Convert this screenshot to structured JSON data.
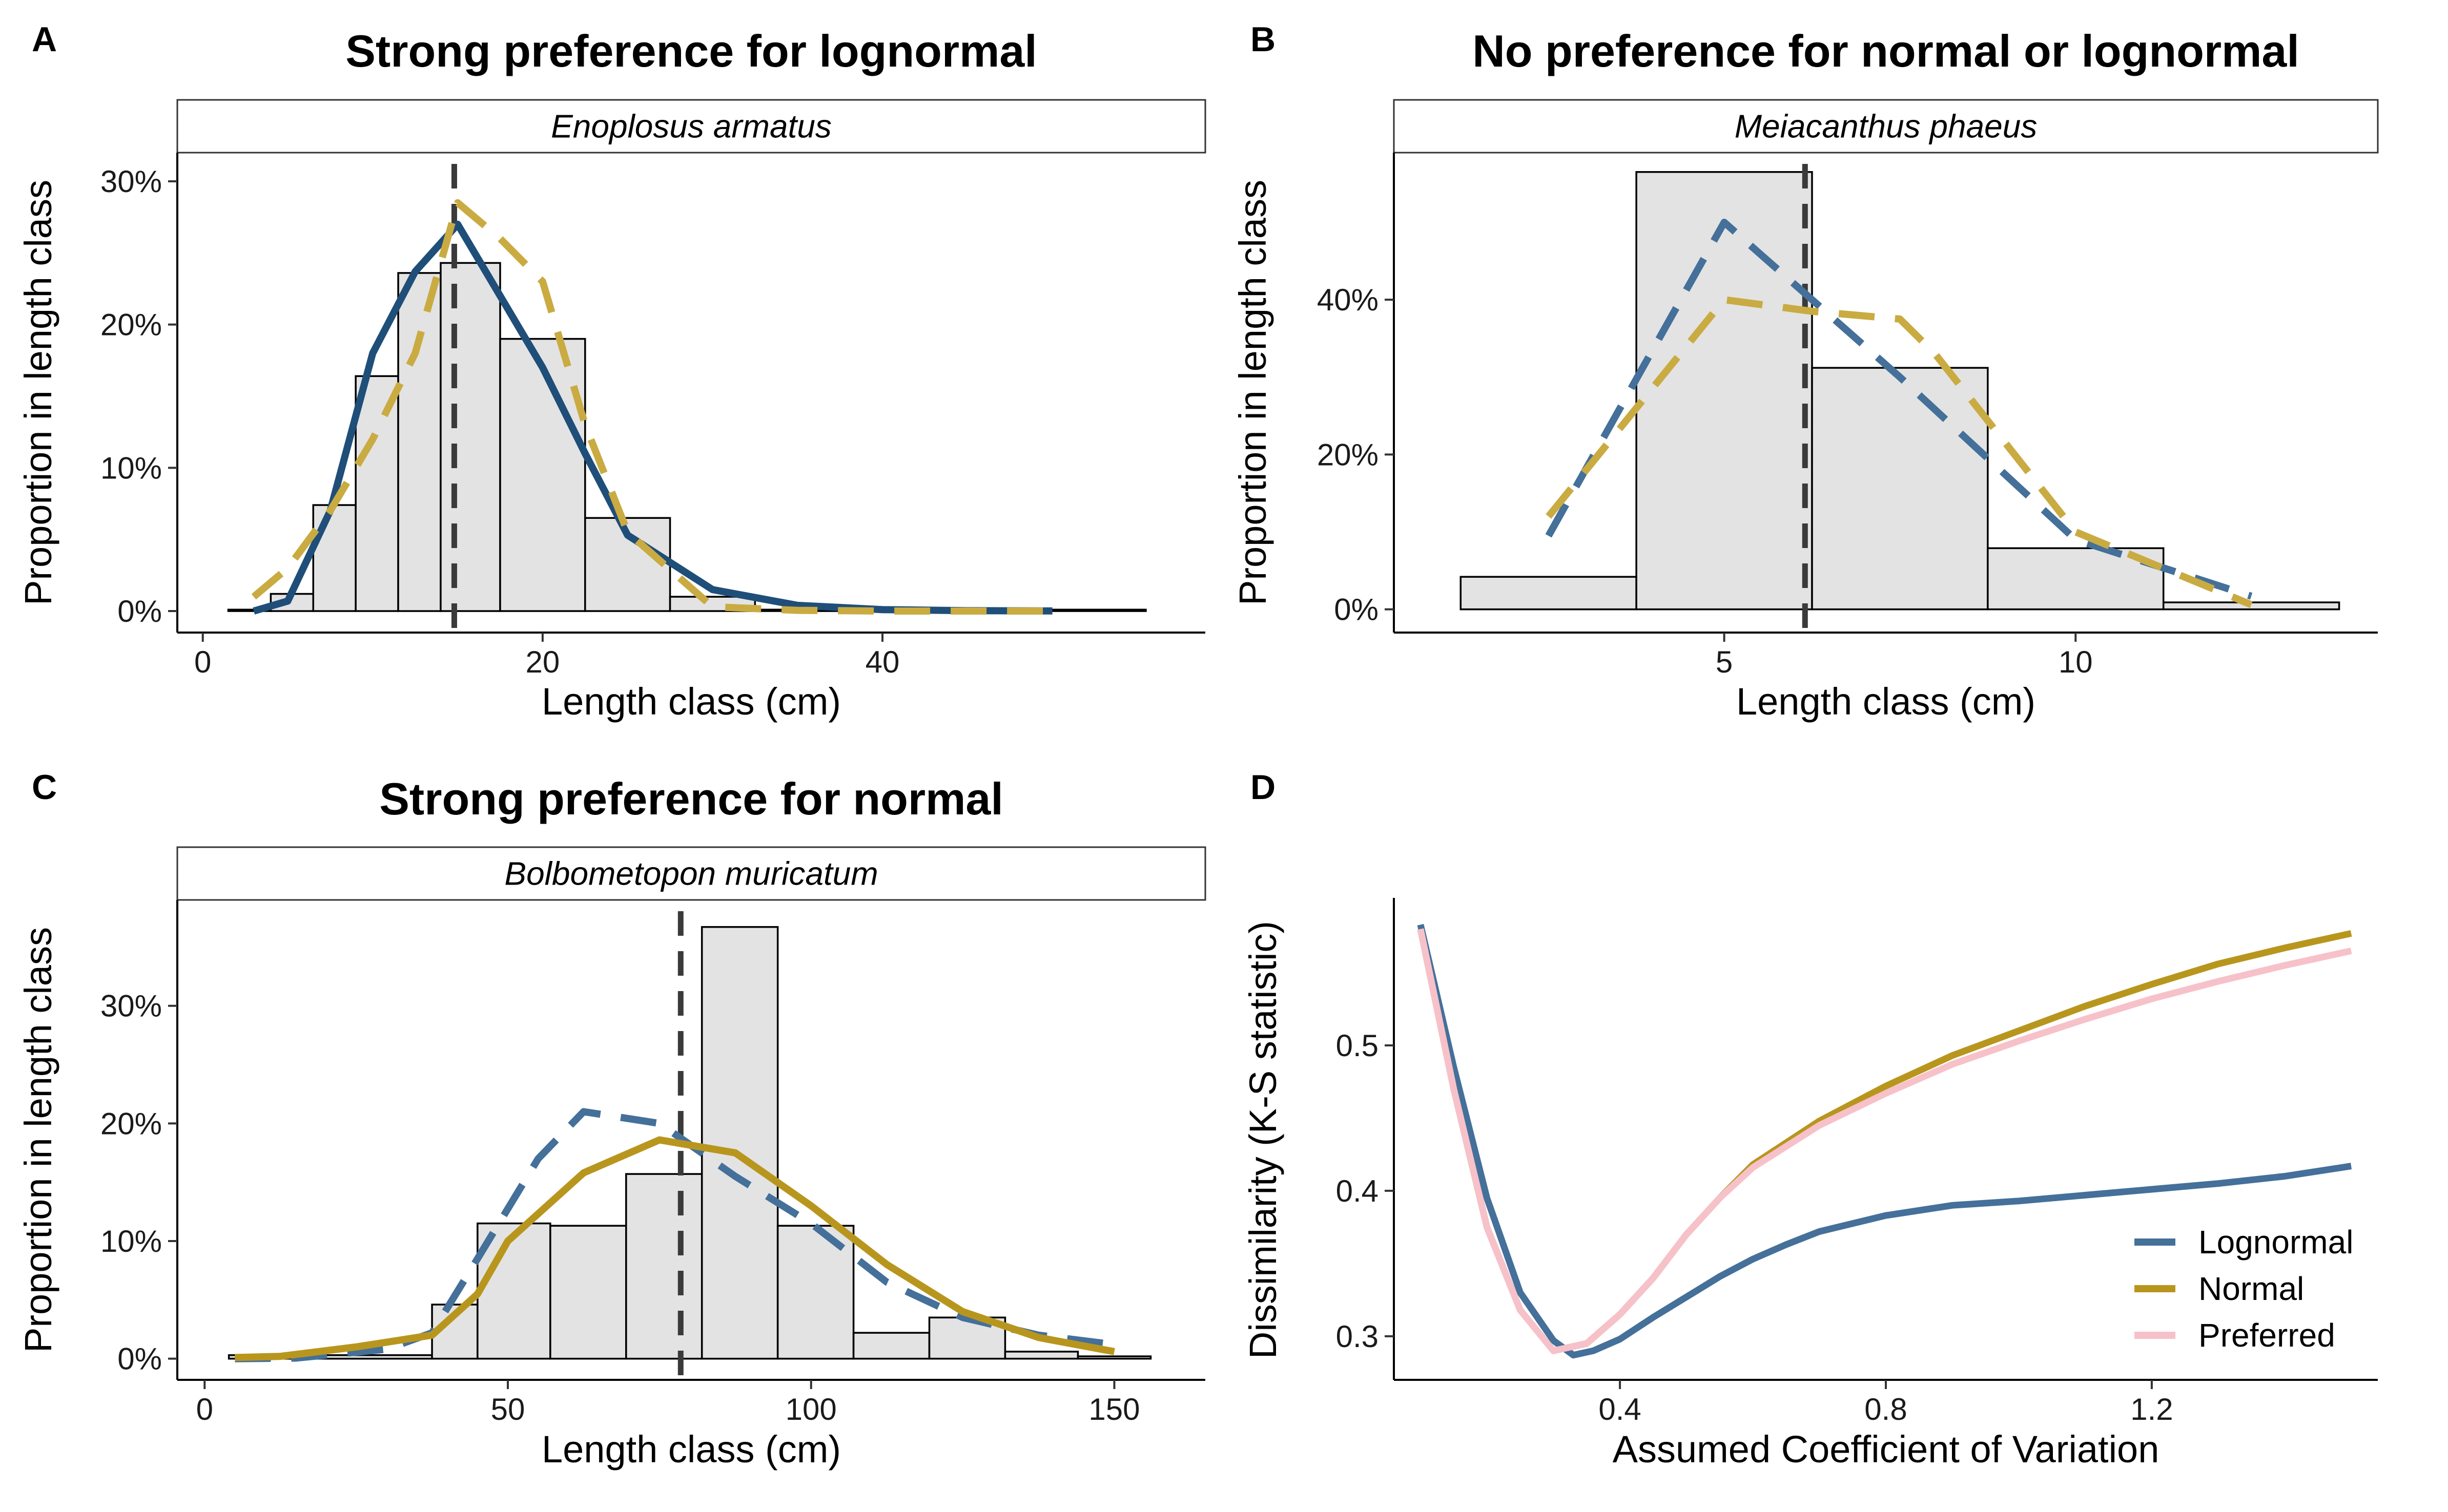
{
  "colors": {
    "lognormal": "#1f4e79",
    "lognormal_dashed": "#44709a",
    "normal": "#b8961e",
    "normal_dashed": "#c9ab42",
    "preferred": "#f7c1ca",
    "bar_fill": "#e3e3e3",
    "bar_stroke": "#000000",
    "mean_line": "#3a3a3a"
  },
  "chart_data": [
    {
      "id": "A",
      "panel_label": "A",
      "type": "bar+line",
      "title": "Strong preference for lognormal",
      "strip": "Enoplosus armatus",
      "xlabel": "Length class (cm)",
      "ylabel": "Proportion in length class",
      "xlim": [
        -1.5,
        59
      ],
      "ylim": [
        -0.015,
        0.32
      ],
      "xticks": [
        0,
        20,
        40
      ],
      "xtick_labels": [
        "0",
        "20",
        "40"
      ],
      "yticks": [
        0,
        0.1,
        0.2,
        0.3
      ],
      "ytick_labels": [
        "0%",
        "10%",
        "20%",
        "30%"
      ],
      "bars": [
        {
          "x0": 1.5,
          "x1": 4,
          "y": 0.001
        },
        {
          "x0": 4,
          "x1": 6.5,
          "y": 0.012
        },
        {
          "x0": 6.5,
          "x1": 9,
          "y": 0.074
        },
        {
          "x0": 9,
          "x1": 11.5,
          "y": 0.164
        },
        {
          "x0": 11.5,
          "x1": 14,
          "y": 0.236
        },
        {
          "x0": 14,
          "x1": 17.5,
          "y": 0.243
        },
        {
          "x0": 17.5,
          "x1": 22.5,
          "y": 0.19
        },
        {
          "x0": 22.5,
          "x1": 27.5,
          "y": 0.065
        },
        {
          "x0": 27.5,
          "x1": 32.5,
          "y": 0.01
        },
        {
          "x0": 32.5,
          "x1": 55.5,
          "y": 0.001
        }
      ],
      "mean_x": 14.8,
      "mean_dashed": true,
      "series": [
        {
          "name": "Lognormal",
          "color_key": "lognormal",
          "dashed": false,
          "x": [
            3,
            5,
            7.5,
            10,
            12.5,
            15,
            17.5,
            20,
            22.5,
            25,
            30,
            35,
            40,
            45,
            50
          ],
          "y": [
            0,
            0.007,
            0.07,
            0.18,
            0.237,
            0.27,
            0.22,
            0.17,
            0.11,
            0.053,
            0.015,
            0.004,
            0.001,
            0.0003,
            0.0001
          ]
        },
        {
          "name": "Normal",
          "color_key": "normal_dashed",
          "dashed": true,
          "x": [
            3,
            5,
            7.5,
            10,
            12.5,
            15,
            17.5,
            20,
            22.5,
            25,
            30,
            35,
            40,
            45,
            50
          ],
          "y": [
            0.01,
            0.03,
            0.07,
            0.12,
            0.18,
            0.285,
            0.26,
            0.23,
            0.13,
            0.055,
            0.003,
            0.0005,
            0,
            0,
            0
          ]
        }
      ]
    },
    {
      "id": "B",
      "panel_label": "B",
      "type": "bar+line",
      "title": "No preference for normal or lognormal",
      "strip": "Meiacanthus phaeus",
      "xlabel": "Length class (cm)",
      "ylabel": "Proportion in length class",
      "xlim": [
        0.3,
        14.3
      ],
      "ylim": [
        -0.03,
        0.59
      ],
      "xticks": [
        5,
        10
      ],
      "xtick_labels": [
        "5",
        "10"
      ],
      "yticks": [
        0,
        0.2,
        0.4
      ],
      "ytick_labels": [
        "0%",
        "20%",
        "40%"
      ],
      "bars": [
        {
          "x0": 1.25,
          "x1": 3.75,
          "y": 0.042
        },
        {
          "x0": 3.75,
          "x1": 6.25,
          "y": 0.565
        },
        {
          "x0": 6.25,
          "x1": 8.75,
          "y": 0.312
        },
        {
          "x0": 8.75,
          "x1": 11.25,
          "y": 0.079
        },
        {
          "x0": 11.25,
          "x1": 13.75,
          "y": 0.009
        }
      ],
      "mean_x": 6.15,
      "mean_dashed": true,
      "series": [
        {
          "name": "Lognormal",
          "color_key": "lognormal_dashed",
          "dashed": true,
          "x": [
            2.5,
            5,
            7.5,
            10,
            12.5
          ],
          "y": [
            0.095,
            0.5,
            0.3,
            0.09,
            0.017
          ]
        },
        {
          "name": "Normal",
          "color_key": "normal_dashed",
          "dashed": true,
          "x": [
            2.5,
            5,
            6.25,
            7.5,
            8,
            10,
            12.5
          ],
          "y": [
            0.12,
            0.4,
            0.385,
            0.375,
            0.33,
            0.1,
            0.006
          ]
        }
      ]
    },
    {
      "id": "C",
      "panel_label": "C",
      "type": "bar+line",
      "title": "Strong preference for normal",
      "strip": "Bolbometopon muricatum",
      "xlabel": "Length class (cm)",
      "ylabel": "Proportion in length class",
      "xlim": [
        -4.5,
        165
      ],
      "ylim": [
        -0.018,
        0.39
      ],
      "xticks": [
        0,
        50,
        100,
        150
      ],
      "xtick_labels": [
        "0",
        "50",
        "100",
        "150"
      ],
      "yticks": [
        0,
        0.1,
        0.2,
        0.3
      ],
      "ytick_labels": [
        "0%",
        "10%",
        "20%",
        "30%"
      ],
      "bars": [
        {
          "x0": 4,
          "x1": 37.5,
          "y": 0.003
        },
        {
          "x0": 37.5,
          "x1": 45,
          "y": 0.046
        },
        {
          "x0": 45,
          "x1": 57,
          "y": 0.115
        },
        {
          "x0": 57,
          "x1": 69.5,
          "y": 0.113
        },
        {
          "x0": 69.5,
          "x1": 82,
          "y": 0.157
        },
        {
          "x0": 82,
          "x1": 94.5,
          "y": 0.367
        },
        {
          "x0": 94.5,
          "x1": 107,
          "y": 0.113
        },
        {
          "x0": 107,
          "x1": 119.5,
          "y": 0.022
        },
        {
          "x0": 119.5,
          "x1": 132,
          "y": 0.035
        },
        {
          "x0": 132,
          "x1": 144,
          "y": 0.006
        },
        {
          "x0": 144,
          "x1": 156,
          "y": 0.002
        }
      ],
      "mean_x": 78.5,
      "mean_dashed": true,
      "series": [
        {
          "name": "Lognormal",
          "color_key": "lognormal_dashed",
          "dashed": true,
          "x": [
            5,
            15,
            30,
            37.5,
            45,
            55,
            62.5,
            75,
            87.5,
            100,
            112.5,
            125,
            137.5,
            150
          ],
          "y": [
            0,
            0.0005,
            0.008,
            0.022,
            0.085,
            0.17,
            0.21,
            0.2,
            0.155,
            0.115,
            0.065,
            0.035,
            0.02,
            0.012
          ]
        },
        {
          "name": "Normal",
          "color_key": "normal",
          "dashed": false,
          "x": [
            5,
            12.5,
            25,
            37.5,
            45,
            50,
            62.5,
            75,
            87.5,
            100,
            112.5,
            125,
            137.5,
            150
          ],
          "y": [
            0.001,
            0.002,
            0.01,
            0.02,
            0.055,
            0.1,
            0.158,
            0.186,
            0.175,
            0.13,
            0.08,
            0.04,
            0.018,
            0.006
          ]
        }
      ]
    },
    {
      "id": "D",
      "panel_label": "D",
      "type": "line",
      "title": "",
      "strip": "",
      "xlabel": "Assumed Coefficient of Variation",
      "ylabel": "Dissimilarity (K-S statistic)",
      "xlim": [
        0.06,
        1.54
      ],
      "ylim": [
        0.27,
        0.6
      ],
      "xticks": [
        0.4,
        0.8,
        1.2
      ],
      "xtick_labels": [
        "0.4",
        "0.8",
        "1.2"
      ],
      "yticks": [
        0.3,
        0.4,
        0.5
      ],
      "ytick_labels": [
        "0.3",
        "0.4",
        "0.5"
      ],
      "legend_position": "bottom-right",
      "series": [
        {
          "name": "Lognormal",
          "color_key": "lognormal_dashed",
          "dashed": false,
          "x": [
            0.1,
            0.15,
            0.2,
            0.25,
            0.3,
            0.33,
            0.36,
            0.4,
            0.45,
            0.5,
            0.55,
            0.6,
            0.65,
            0.7,
            0.8,
            0.9,
            1.0,
            1.1,
            1.2,
            1.3,
            1.4,
            1.5
          ],
          "y": [
            0.583,
            0.485,
            0.395,
            0.33,
            0.297,
            0.287,
            0.29,
            0.298,
            0.313,
            0.327,
            0.341,
            0.353,
            0.363,
            0.372,
            0.383,
            0.39,
            0.393,
            0.397,
            0.401,
            0.405,
            0.41,
            0.417
          ]
        },
        {
          "name": "Normal",
          "color_key": "normal",
          "dashed": false,
          "x": [
            0.1,
            0.15,
            0.2,
            0.25,
            0.3,
            0.35,
            0.4,
            0.45,
            0.5,
            0.55,
            0.6,
            0.7,
            0.8,
            0.9,
            1.0,
            1.1,
            1.2,
            1.3,
            1.4,
            1.5
          ],
          "y": [
            0.58,
            0.47,
            0.375,
            0.318,
            0.29,
            0.295,
            0.315,
            0.34,
            0.37,
            0.395,
            0.418,
            0.448,
            0.472,
            0.493,
            0.51,
            0.527,
            0.542,
            0.556,
            0.567,
            0.577
          ]
        },
        {
          "name": "Preferred",
          "color_key": "preferred",
          "dashed": false,
          "x": [
            0.1,
            0.15,
            0.2,
            0.25,
            0.3,
            0.35,
            0.4,
            0.45,
            0.5,
            0.55,
            0.6,
            0.7,
            0.8,
            0.9,
            1.0,
            1.1,
            1.2,
            1.3,
            1.4,
            1.5
          ],
          "y": [
            0.58,
            0.47,
            0.375,
            0.318,
            0.29,
            0.295,
            0.315,
            0.34,
            0.37,
            0.395,
            0.416,
            0.445,
            0.467,
            0.487,
            0.503,
            0.518,
            0.532,
            0.544,
            0.555,
            0.565
          ]
        }
      ]
    }
  ]
}
